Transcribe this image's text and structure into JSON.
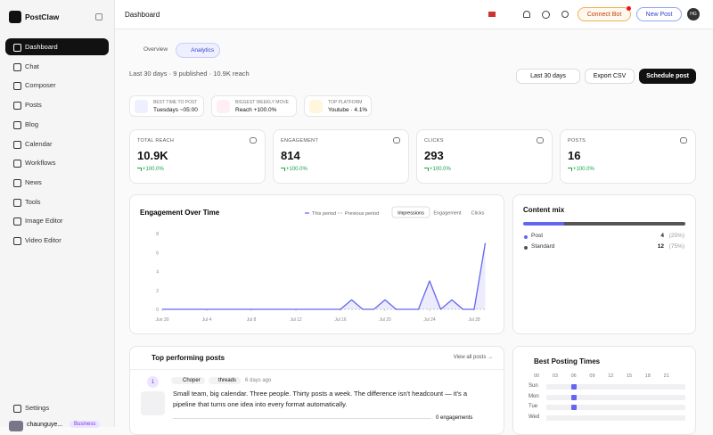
{
  "sidebar": {
    "brand": "PostClaw",
    "nav": [
      "Dashboard",
      "Chat",
      "Composer",
      "Posts",
      "Blog",
      "Calendar",
      "Workflows",
      "News",
      "Tools",
      "Image Editor",
      "Video Editor"
    ],
    "settings": "Settings",
    "user": "chaunguye...",
    "plan": "Business"
  },
  "header": {
    "title": "Dashboard",
    "connect": "Connect Bot",
    "new_post": "New Post",
    "avatar": "HG"
  },
  "tabs": [
    "Overview",
    "Analytics"
  ],
  "summary": "Last 30 days · 9 published · 10.9K reach",
  "actions": {
    "range": "Last 30 days",
    "export": "Export CSV",
    "schedule": "Schedule post"
  },
  "insights": [
    {
      "label": "BEST TIME TO POST",
      "value": "Tuesdays ~05:00"
    },
    {
      "label": "BIGGEST WEEKLY MOVE",
      "value": "Reach +100.0%"
    },
    {
      "label": "TOP PLATFORM",
      "value": "Youtube · 4.1%"
    }
  ],
  "stats": [
    {
      "label": "TOTAL REACH",
      "value": "10.9K",
      "change": "+100.0%"
    },
    {
      "label": "ENGAGEMENT",
      "value": "814",
      "change": "+100.0%"
    },
    {
      "label": "CLICKS",
      "value": "293",
      "change": "+100.0%"
    },
    {
      "label": "POSTS",
      "value": "16",
      "change": "+100.0%"
    }
  ],
  "engagement_chart": {
    "type": "line",
    "title": "Engagement Over Time",
    "metrics": [
      "Impressions",
      "Engagement",
      "Clicks"
    ],
    "xticks": [
      {
        "value": 0,
        "label": "Jun 30"
      },
      {
        "value": 4,
        "label": "Jul 4"
      },
      {
        "value": 8,
        "label": "Jul 8"
      },
      {
        "value": 12,
        "label": "Jul 12"
      },
      {
        "value": 16,
        "label": "Jul 16"
      },
      {
        "value": 20,
        "label": "Jul 20"
      },
      {
        "value": 24,
        "label": "Jul 24"
      },
      {
        "value": 28,
        "label": "Jul 28"
      }
    ],
    "xlim": [
      0,
      29
    ],
    "ylim": [
      0,
      8
    ],
    "yticks": [
      0,
      2,
      4,
      6,
      8
    ],
    "series": [
      {
        "name": "This period",
        "color": "#6366f1",
        "values": [
          0,
          0,
          0,
          0,
          0,
          0,
          0,
          0,
          0,
          0,
          0,
          0,
          0,
          0,
          0,
          0,
          0,
          1,
          0,
          0,
          1,
          0,
          0,
          0,
          3,
          0,
          1,
          0,
          0,
          7
        ]
      },
      {
        "name": "Previous period",
        "color": "#bbbbbb",
        "values": [
          0,
          0,
          0,
          0,
          0,
          0,
          0,
          0,
          0,
          0,
          0,
          0,
          0,
          0,
          0,
          0,
          0,
          0,
          0,
          0,
          0,
          0,
          0,
          0,
          0,
          0,
          0,
          0,
          0,
          0
        ]
      }
    ]
  },
  "content_mix": {
    "title": "Content mix",
    "items": [
      {
        "name": "Post",
        "value": 4,
        "label": "4",
        "pct": "(25%)",
        "color": "#6366f1"
      },
      {
        "name": "Standard",
        "value": 12,
        "label": "12",
        "pct": "(75%)",
        "color": "#555555"
      }
    ]
  },
  "top_posts": {
    "title": "Top performing posts",
    "view_all": "View all posts →",
    "posts": [
      {
        "rank": "1",
        "account": "Choper",
        "platform": "threads",
        "time": "6 days ago",
        "text": "Small team, big calendar. Three people. Thirty posts a week. The difference isn't headcount — it's a pipeline that turns one idea into every format automatically.",
        "engagements": "0 engagements"
      }
    ]
  },
  "best_times": {
    "title": "Best Posting Times",
    "hours": [
      "00",
      "03",
      "06",
      "09",
      "12",
      "15",
      "18",
      "21"
    ],
    "days": [
      "Sun",
      "Mon",
      "Tue",
      "Wed"
    ]
  }
}
